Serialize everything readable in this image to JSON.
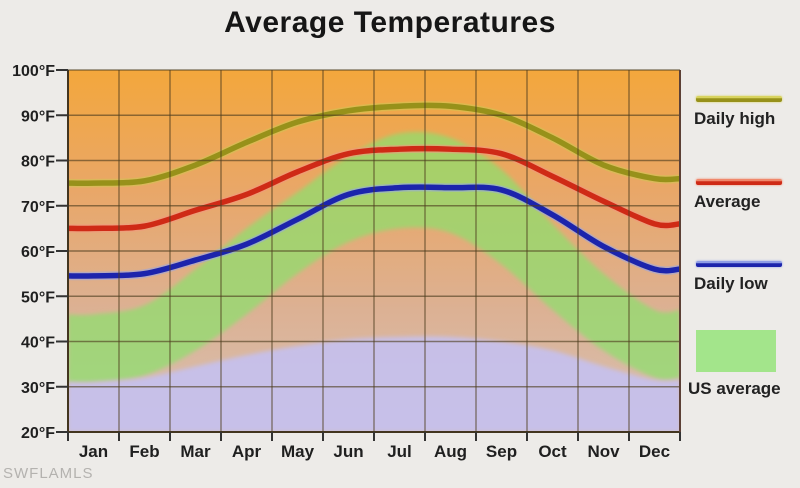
{
  "title": "Average Temperatures",
  "watermark": "SWFLAMLS",
  "chart_data": {
    "type": "line",
    "title": "Average Temperatures",
    "categories": [
      "Jan",
      "Feb",
      "Mar",
      "Apr",
      "May",
      "Jun",
      "Jul",
      "Aug",
      "Sep",
      "Oct",
      "Nov",
      "Dec"
    ],
    "y_axis": {
      "unit": "°F",
      "min": 20,
      "max": 100,
      "step": 10,
      "tick_labels": [
        "100°F",
        "90°F",
        "80°F",
        "70°F",
        "60°F",
        "50°F",
        "40°F",
        "30°F",
        "20°F"
      ]
    },
    "grid": true,
    "legend_position": "right",
    "series": [
      {
        "name": "Daily high",
        "color": "#97911a",
        "halo": "#cdc752",
        "values": [
          75,
          75.5,
          79,
          84,
          88.5,
          91,
          92,
          92,
          90,
          85,
          79,
          76
        ]
      },
      {
        "name": "Average",
        "color": "#cf2a16",
        "halo": "#f2977f",
        "values": [
          65,
          65.5,
          69,
          72.5,
          77.5,
          81.5,
          82.5,
          82.5,
          81.5,
          76.5,
          71,
          66
        ]
      },
      {
        "name": "Daily low",
        "color": "#1c24ac",
        "halo": "#96a5e8",
        "values": [
          54.5,
          55,
          58,
          61.5,
          67,
          72.5,
          74,
          74,
          73.5,
          68,
          61,
          56
        ]
      }
    ],
    "bands": [
      {
        "name": "US average",
        "fill": "#8edf6d",
        "opacity": 0.72,
        "upper": [
          46,
          48,
          56,
          65,
          73,
          81,
          86,
          85,
          78,
          66,
          55,
          47
        ],
        "lower": [
          31,
          32.5,
          38,
          46,
          55,
          62,
          65,
          64,
          57,
          47,
          38,
          32
        ]
      },
      {
        "name": "lower shading",
        "fill": "#c5c0ee",
        "opacity": 0.92,
        "upper": [
          31,
          32,
          34.5,
          37,
          39,
          40.5,
          41,
          41,
          40,
          38,
          34.5,
          31.5
        ],
        "lower": [
          20,
          20,
          20,
          20,
          20,
          20,
          20,
          20,
          20,
          20,
          20,
          20
        ]
      }
    ],
    "legend": [
      {
        "label": "Daily high",
        "swatch": "line",
        "color": "#97911a",
        "highlight": "#d8d35e"
      },
      {
        "label": "Average",
        "swatch": "line",
        "color": "#cf2a16",
        "highlight": "#f0886c"
      },
      {
        "label": "Daily low",
        "swatch": "line",
        "color": "#1c24ac",
        "highlight": "#8e9de6"
      },
      {
        "label": "US average",
        "swatch": "area",
        "color": "#a3e58b",
        "highlight": "#a3e58b"
      }
    ],
    "colors": {
      "page_background": "#edebe8",
      "plot_gradient": [
        "#f3a73c",
        "#e9a768",
        "#dcb194",
        "#d6c2b4"
      ],
      "gridline": "#4d3d1e",
      "frame": "#43351f",
      "frame_right": "#5c4036",
      "text": "#1f1f1f"
    }
  }
}
